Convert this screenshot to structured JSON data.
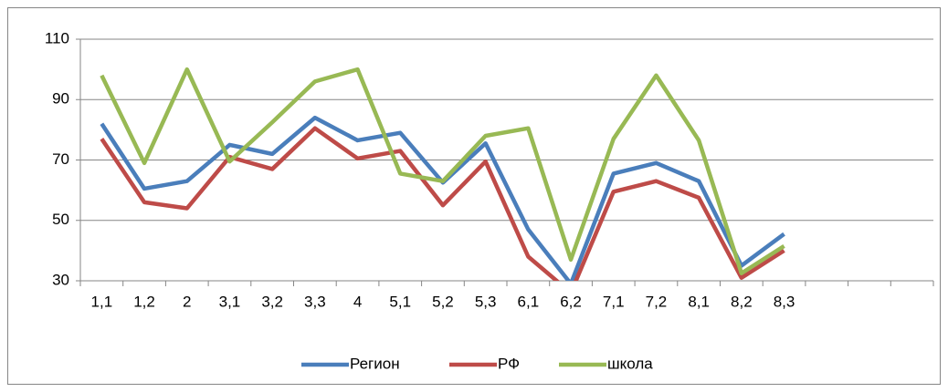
{
  "chart_data": {
    "type": "line",
    "categories": [
      "1,1",
      "1,2",
      "2",
      "3,1",
      "3,2",
      "3,3",
      "4",
      "5,1",
      "5,2",
      "5,3",
      "6,1",
      "6,2",
      "7,1",
      "7,2",
      "8,1",
      "8,2",
      "8,3",
      null,
      null,
      null
    ],
    "series": [
      {
        "name": "Регион",
        "color": "#4a7ebb",
        "values": [
          82,
          60.5,
          63,
          75,
          72,
          84,
          76.5,
          79,
          62.5,
          75.5,
          47,
          29,
          65.5,
          69,
          63,
          35,
          45.5,
          null,
          null,
          null
        ]
      },
      {
        "name": "РФ",
        "color": "#be4b48",
        "values": [
          77,
          56,
          54,
          71,
          67,
          80.5,
          70.5,
          73,
          55,
          69.5,
          38,
          26,
          59.5,
          63,
          57.5,
          31,
          40,
          null,
          null,
          null
        ]
      },
      {
        "name": "школа",
        "color": "#98b954",
        "values": [
          98,
          69,
          100,
          69.5,
          82.5,
          96,
          100,
          65.5,
          63,
          78,
          80.5,
          37,
          77,
          98,
          76.5,
          32.5,
          41.5,
          null,
          null,
          null
        ]
      }
    ],
    "ylim": [
      30,
      110
    ],
    "yticks": [
      30,
      50,
      70,
      90,
      110
    ],
    "grid": true,
    "legend": "bottom"
  }
}
